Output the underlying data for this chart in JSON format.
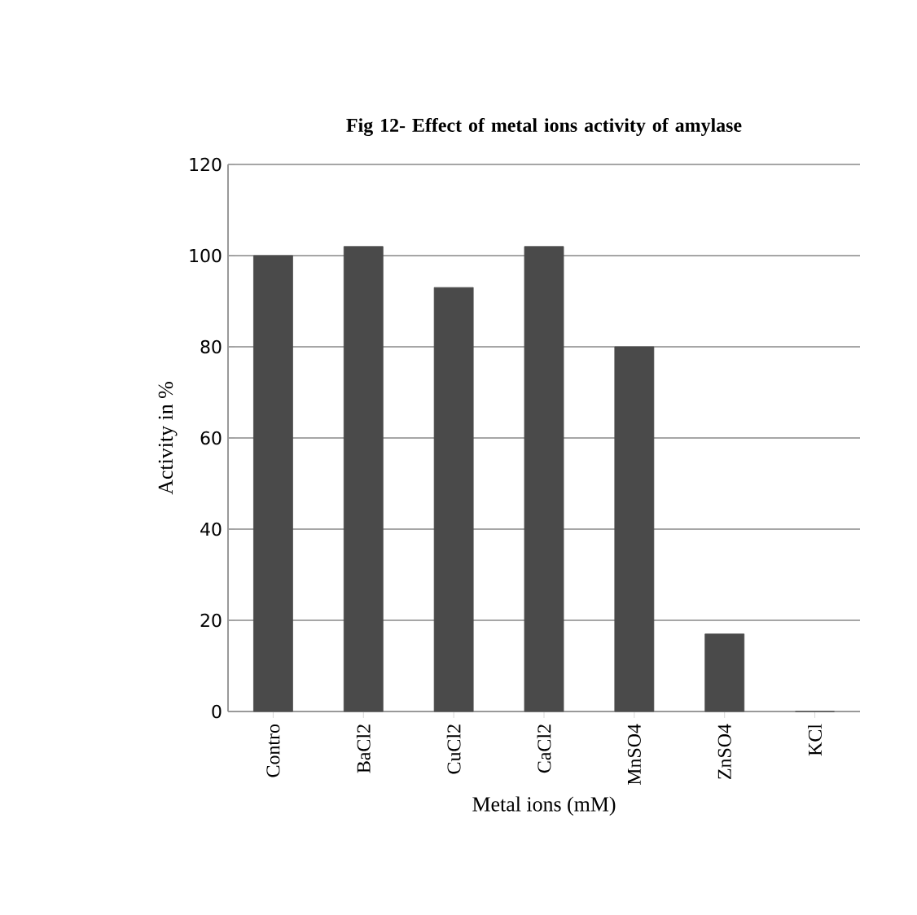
{
  "chart_data": {
    "type": "bar",
    "title": "Fig 12- Effect of metal ions activity of amylase",
    "xlabel": "Metal ions (mM)",
    "ylabel": "Activity in %",
    "categories": [
      "Contro",
      "BaCl2",
      "CuCl2",
      "CaCl2",
      "MnSO4",
      "ZnSO4",
      "KCl"
    ],
    "values": [
      100,
      102,
      93,
      102,
      80,
      17,
      0
    ],
    "color": "#4a4a4a",
    "ylim": [
      0,
      120
    ],
    "yticks": [
      0,
      20,
      40,
      60,
      80,
      100,
      120
    ],
    "grid": "y"
  }
}
